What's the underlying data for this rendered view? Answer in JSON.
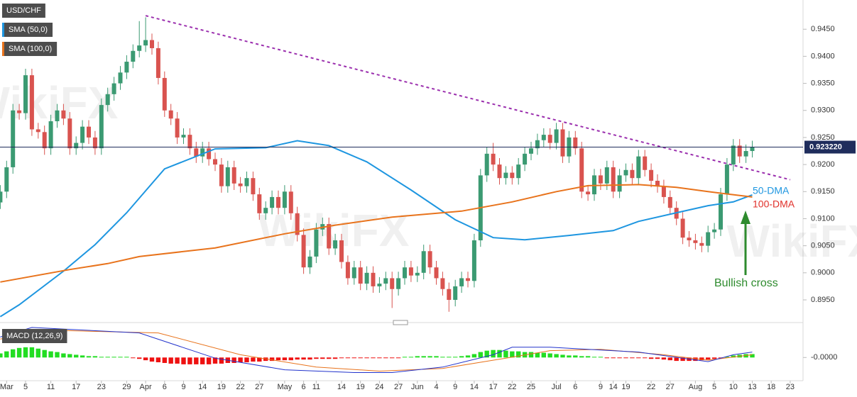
{
  "chart_data": [
    {
      "type": "candlestick",
      "title": "USD/CHF",
      "watermark": "WikiFX",
      "up_color": "#3b9a72",
      "down_color": "#d9534f",
      "xlim": [
        0,
        127
      ],
      "ylim": [
        0.8912,
        0.9504
      ],
      "yticks": [
        {
          "value": 0.945,
          "label": "0.9450"
        },
        {
          "value": 0.94,
          "label": "0.9400"
        },
        {
          "value": 0.935,
          "label": "0.9350"
        },
        {
          "value": 0.93,
          "label": "0.9300"
        },
        {
          "value": 0.925,
          "label": "0.9250"
        },
        {
          "value": 0.92,
          "label": "0.9200"
        },
        {
          "value": 0.915,
          "label": "0.9150"
        },
        {
          "value": 0.91,
          "label": "0.9100"
        },
        {
          "value": 0.905,
          "label": "0.9050"
        },
        {
          "value": 0.9,
          "label": "0.9000"
        },
        {
          "value": 0.895,
          "label": "0.8950"
        }
      ],
      "open": [
        0.913,
        0.915,
        0.9195,
        0.93,
        0.9295,
        0.9365,
        0.9265,
        0.926,
        0.923,
        0.928,
        0.93,
        0.9285,
        0.923,
        0.924,
        0.927,
        0.925,
        0.923,
        0.931,
        0.933,
        0.935,
        0.937,
        0.939,
        0.941,
        0.942,
        0.943,
        0.9415,
        0.936,
        0.93,
        0.9285,
        0.925,
        0.9255,
        0.923,
        0.9215,
        0.923,
        0.921,
        0.92,
        0.916,
        0.9195,
        0.9165,
        0.916,
        0.9175,
        0.9145,
        0.911,
        0.912,
        0.914,
        0.912,
        0.915,
        0.911,
        0.907,
        0.901,
        0.903,
        0.908,
        0.909,
        0.9045,
        0.906,
        0.902,
        0.899,
        0.901,
        0.898,
        0.9,
        0.8975,
        0.898,
        0.899,
        0.897,
        0.899,
        0.901,
        0.8995,
        0.9,
        0.904,
        0.901,
        0.899,
        0.897,
        0.895,
        0.8975,
        0.899,
        0.8985,
        0.906,
        0.918,
        0.922,
        0.92,
        0.9175,
        0.9185,
        0.9175,
        0.92,
        0.922,
        0.923,
        0.9245,
        0.9255,
        0.924,
        0.9265,
        0.9215,
        0.925,
        0.923,
        0.915,
        0.9145,
        0.918,
        0.9165,
        0.9195,
        0.915,
        0.918,
        0.919,
        0.9175,
        0.9215,
        0.919,
        0.917,
        0.916,
        0.914,
        0.912,
        0.91,
        0.9065,
        0.906,
        0.9055,
        0.905,
        0.9075,
        0.908,
        0.9145,
        0.92,
        0.9235,
        0.9215,
        0.9225
      ],
      "high": [
        0.9162,
        0.9207,
        0.9312,
        0.9312,
        0.9377,
        0.9377,
        0.9277,
        0.9272,
        0.9292,
        0.9312,
        0.9312,
        0.9297,
        0.9252,
        0.9282,
        0.9282,
        0.9262,
        0.9322,
        0.9342,
        0.9362,
        0.9382,
        0.9402,
        0.9422,
        0.9465,
        0.9472,
        0.9442,
        0.9427,
        0.9372,
        0.9312,
        0.9297,
        0.9267,
        0.9267,
        0.9242,
        0.9242,
        0.9242,
        0.9222,
        0.9212,
        0.9207,
        0.9207,
        0.9177,
        0.9187,
        0.9187,
        0.9157,
        0.9132,
        0.9152,
        0.9152,
        0.9162,
        0.9162,
        0.9122,
        0.9082,
        0.9042,
        0.9092,
        0.9102,
        0.9102,
        0.9072,
        0.9072,
        0.9032,
        0.9022,
        0.9022,
        0.9012,
        0.9012,
        0.8992,
        0.9002,
        0.9002,
        0.9002,
        0.9022,
        0.9022,
        0.9012,
        0.9052,
        0.9052,
        0.9022,
        0.9002,
        0.8982,
        0.8987,
        0.9002,
        0.9002,
        0.9072,
        0.9192,
        0.9232,
        0.924,
        0.9212,
        0.9197,
        0.9197,
        0.9212,
        0.9232,
        0.9242,
        0.9257,
        0.9267,
        0.9267,
        0.9277,
        0.9277,
        0.9262,
        0.9262,
        0.9242,
        0.9162,
        0.9192,
        0.9192,
        0.9207,
        0.9207,
        0.9192,
        0.9202,
        0.9202,
        0.9227,
        0.9227,
        0.9202,
        0.9182,
        0.9172,
        0.9152,
        0.9132,
        0.9112,
        0.9077,
        0.9072,
        0.9067,
        0.9087,
        0.9092,
        0.9157,
        0.9212,
        0.9247,
        0.9247,
        0.9237,
        0.9244
      ],
      "low": [
        0.9118,
        0.9138,
        0.9183,
        0.9283,
        0.9283,
        0.9253,
        0.9248,
        0.9218,
        0.9218,
        0.9268,
        0.9273,
        0.9218,
        0.9218,
        0.9228,
        0.9238,
        0.9218,
        0.9218,
        0.9298,
        0.9318,
        0.9338,
        0.9358,
        0.9378,
        0.9398,
        0.9408,
        0.9403,
        0.9348,
        0.9288,
        0.9273,
        0.9238,
        0.9238,
        0.9218,
        0.9203,
        0.9203,
        0.9198,
        0.9188,
        0.9148,
        0.9148,
        0.9153,
        0.9148,
        0.9148,
        0.9133,
        0.9098,
        0.9098,
        0.9108,
        0.9108,
        0.9108,
        0.9098,
        0.9058,
        0.8998,
        0.8998,
        0.9018,
        0.9068,
        0.9033,
        0.9033,
        0.9008,
        0.8978,
        0.8978,
        0.8968,
        0.8968,
        0.8963,
        0.8963,
        0.8968,
        0.8935,
        0.8958,
        0.8978,
        0.8983,
        0.8983,
        0.8988,
        0.8998,
        0.8978,
        0.8958,
        0.8928,
        0.8938,
        0.8963,
        0.8973,
        0.8973,
        0.9048,
        0.9168,
        0.9188,
        0.9163,
        0.9163,
        0.9163,
        0.9163,
        0.9188,
        0.9208,
        0.9218,
        0.9233,
        0.9228,
        0.9228,
        0.9203,
        0.9203,
        0.9218,
        0.9138,
        0.9133,
        0.9133,
        0.9153,
        0.9153,
        0.9138,
        0.9138,
        0.9168,
        0.9163,
        0.9163,
        0.9178,
        0.9158,
        0.9148,
        0.9128,
        0.9108,
        0.9088,
        0.9053,
        0.9048,
        0.9043,
        0.9038,
        0.9038,
        0.9063,
        0.9068,
        0.9133,
        0.9188,
        0.9203,
        0.9203,
        0.9213
      ],
      "close": [
        0.915,
        0.9195,
        0.93,
        0.9295,
        0.9365,
        0.9265,
        0.926,
        0.923,
        0.928,
        0.93,
        0.9285,
        0.923,
        0.924,
        0.927,
        0.925,
        0.923,
        0.931,
        0.933,
        0.935,
        0.937,
        0.939,
        0.941,
        0.942,
        0.943,
        0.9415,
        0.936,
        0.93,
        0.9285,
        0.925,
        0.9255,
        0.923,
        0.9215,
        0.923,
        0.921,
        0.92,
        0.916,
        0.9195,
        0.9165,
        0.916,
        0.9175,
        0.9145,
        0.911,
        0.912,
        0.914,
        0.912,
        0.915,
        0.911,
        0.907,
        0.901,
        0.903,
        0.908,
        0.909,
        0.9045,
        0.906,
        0.902,
        0.899,
        0.901,
        0.898,
        0.9,
        0.8975,
        0.898,
        0.899,
        0.897,
        0.899,
        0.901,
        0.8995,
        0.9,
        0.904,
        0.901,
        0.899,
        0.897,
        0.895,
        0.8975,
        0.899,
        0.8985,
        0.906,
        0.918,
        0.922,
        0.92,
        0.9175,
        0.9185,
        0.9175,
        0.92,
        0.922,
        0.923,
        0.9245,
        0.9255,
        0.924,
        0.9265,
        0.9215,
        0.925,
        0.923,
        0.915,
        0.9145,
        0.918,
        0.9165,
        0.9195,
        0.915,
        0.918,
        0.919,
        0.9175,
        0.9215,
        0.919,
        0.917,
        0.916,
        0.914,
        0.912,
        0.91,
        0.9065,
        0.906,
        0.9055,
        0.905,
        0.9075,
        0.908,
        0.9145,
        0.92,
        0.9235,
        0.9215,
        0.9225,
        0.9232
      ],
      "series": [
        {
          "name": "SMA (50,0)",
          "color": "#1e96e0",
          "x": [
            0,
            3,
            10,
            15,
            20,
            26,
            34,
            42,
            47,
            52,
            58,
            65,
            72,
            78,
            83,
            90,
            97,
            101,
            107,
            112,
            116,
            119
          ],
          "values": [
            0.8919,
            0.8941,
            0.9003,
            0.9052,
            0.9111,
            0.9192,
            0.9229,
            0.9231,
            0.9244,
            0.9235,
            0.9205,
            0.9153,
            0.9098,
            0.9065,
            0.9061,
            0.9069,
            0.9078,
            0.9095,
            0.9111,
            0.9124,
            0.9131,
            0.9144
          ]
        },
        {
          "name": "SMA (100,0)",
          "color": "#e8731c",
          "x": [
            0,
            11,
            17,
            22,
            34,
            45,
            53,
            62,
            73,
            81,
            88,
            93,
            101,
            107,
            112,
            119
          ],
          "values": [
            0.8983,
            0.9006,
            0.9017,
            0.903,
            0.9046,
            0.9072,
            0.9088,
            0.9103,
            0.9114,
            0.9131,
            0.915,
            0.9161,
            0.9163,
            0.9158,
            0.915,
            0.914
          ]
        }
      ],
      "trendline": {
        "color": "#9b2fae",
        "x": [
          23,
          125
        ],
        "values": [
          0.9475,
          0.9172
        ]
      },
      "last_price": {
        "value": 0.92322,
        "label": "0.923220"
      },
      "last_price_color": "#1f2d5c",
      "annotations": [
        {
          "text": "50-DMA",
          "color": "#1e96e0"
        },
        {
          "text": "100-DMA",
          "color": "#e0302a"
        },
        {
          "text": "Bullish cross",
          "color": "#2e8b2e"
        }
      ]
    },
    {
      "type": "macd",
      "title": "MACD (12,26,9)",
      "xlim": [
        0,
        127
      ],
      "ylim": [
        -0.0034,
        0.0046
      ],
      "yticks": [
        {
          "value": 0,
          "label": "-0.0000"
        }
      ],
      "xticks": [
        {
          "value": 1,
          "label": "Mar"
        },
        {
          "value": 4,
          "label": "5"
        },
        {
          "value": 8,
          "label": "11"
        },
        {
          "value": 12,
          "label": "17"
        },
        {
          "value": 16,
          "label": "23"
        },
        {
          "value": 20,
          "label": "29"
        },
        {
          "value": 23,
          "label": "Apr"
        },
        {
          "value": 26,
          "label": "6"
        },
        {
          "value": 29,
          "label": "9"
        },
        {
          "value": 32,
          "label": "14"
        },
        {
          "value": 35,
          "label": "19"
        },
        {
          "value": 38,
          "label": "22"
        },
        {
          "value": 41,
          "label": "27"
        },
        {
          "value": 45,
          "label": "May"
        },
        {
          "value": 48,
          "label": "6"
        },
        {
          "value": 50,
          "label": "11"
        },
        {
          "value": 54,
          "label": "14"
        },
        {
          "value": 57,
          "label": "19"
        },
        {
          "value": 60,
          "label": "24"
        },
        {
          "value": 63,
          "label": "27"
        },
        {
          "value": 66,
          "label": "Jun"
        },
        {
          "value": 69,
          "label": "4"
        },
        {
          "value": 72,
          "label": "9"
        },
        {
          "value": 75,
          "label": "14"
        },
        {
          "value": 78,
          "label": "17"
        },
        {
          "value": 81,
          "label": "22"
        },
        {
          "value": 84,
          "label": "25"
        },
        {
          "value": 88,
          "label": "Jul"
        },
        {
          "value": 91,
          "label": "6"
        },
        {
          "value": 95,
          "label": "9"
        },
        {
          "value": 97,
          "label": "14"
        },
        {
          "value": 99,
          "label": "19"
        },
        {
          "value": 103,
          "label": "22"
        },
        {
          "value": 106,
          "label": "27"
        },
        {
          "value": 110,
          "label": "Aug"
        },
        {
          "value": 113,
          "label": "5"
        },
        {
          "value": 116,
          "label": "10"
        },
        {
          "value": 119,
          "label": "13"
        },
        {
          "value": 122,
          "label": "18"
        },
        {
          "value": 125,
          "label": "23"
        }
      ],
      "histogram": {
        "up_color": "#22dd22",
        "down_color": "#ee1111",
        "values": [
          0.0006,
          0.0009,
          0.0012,
          0.0014,
          0.0015,
          0.0015,
          0.0013,
          0.0011,
          0.0009,
          0.0008,
          0.0006,
          0.0005,
          0.0004,
          0.0003,
          0.0002,
          0.0002,
          0.0001,
          0.0001,
          0.0001,
          0.0001,
          0.0001,
          -0.0001,
          -0.0002,
          -0.0004,
          -0.0006,
          -0.0007,
          -0.0008,
          -0.0009,
          -0.0009,
          -0.001,
          -0.001,
          -0.001,
          -0.001,
          -0.001,
          -0.0009,
          -0.0009,
          -0.0008,
          -0.0008,
          -0.0007,
          -0.0007,
          -0.0006,
          -0.0006,
          -0.0005,
          -0.0005,
          -0.0004,
          -0.0004,
          -0.0004,
          -0.0003,
          -0.0003,
          -0.0003,
          -0.0002,
          -0.0002,
          -0.0002,
          -0.0002,
          -0.0001,
          -0.0001,
          -0.0001,
          -0.0001,
          -0.0001,
          -0.0001,
          -0.0001,
          -0.0001,
          -0.0001,
          -0.0001,
          0.0001,
          0.0001,
          0.0002,
          0.0002,
          0.0002,
          0.0002,
          0.0001,
          0.0001,
          0.0001,
          0.0002,
          0.0003,
          0.0005,
          0.0008,
          0.001,
          0.0011,
          0.0011,
          0.001,
          0.0009,
          0.0009,
          0.0008,
          0.0008,
          0.0007,
          0.0007,
          0.0006,
          0.0005,
          0.0004,
          0.0003,
          0.0003,
          0.0002,
          0.0002,
          0.0001,
          0.0001,
          -0.0001,
          -0.0001,
          -0.0001,
          -0.0001,
          -0.0001,
          -0.0001,
          -0.0001,
          -0.0002,
          -0.0002,
          -0.0003,
          -0.0004,
          -0.0005,
          -0.0005,
          -0.0005,
          -0.0005,
          -0.0004,
          -0.0003,
          -0.0002,
          -0.0001,
          0.0001,
          0.0003,
          0.0004,
          0.0005,
          0.0005
        ]
      },
      "macd": {
        "color": "#2233cc",
        "x": [
          0,
          5,
          22,
          34,
          45,
          56,
          62,
          70,
          78,
          81,
          87,
          93,
          101,
          108,
          112,
          116,
          119
        ],
        "values": [
          0.003,
          0.0044,
          0.0036,
          -0.0001,
          -0.0018,
          -0.0022,
          -0.0022,
          -0.0014,
          0.0004,
          0.0015,
          0.0015,
          0.0012,
          0.0008,
          -0.0001,
          -0.0006,
          0.0004,
          0.0008
        ]
      },
      "signal": {
        "color": "#e8731c",
        "x": [
          0,
          8,
          25,
          38,
          50,
          60,
          70,
          80,
          87,
          95,
          105,
          112,
          119
        ],
        "values": [
          0.0027,
          0.004,
          0.0036,
          0.0004,
          -0.0014,
          -0.002,
          -0.0016,
          -0.0001,
          0.001,
          0.0012,
          0.0004,
          -0.0004,
          0.0004
        ]
      }
    }
  ]
}
